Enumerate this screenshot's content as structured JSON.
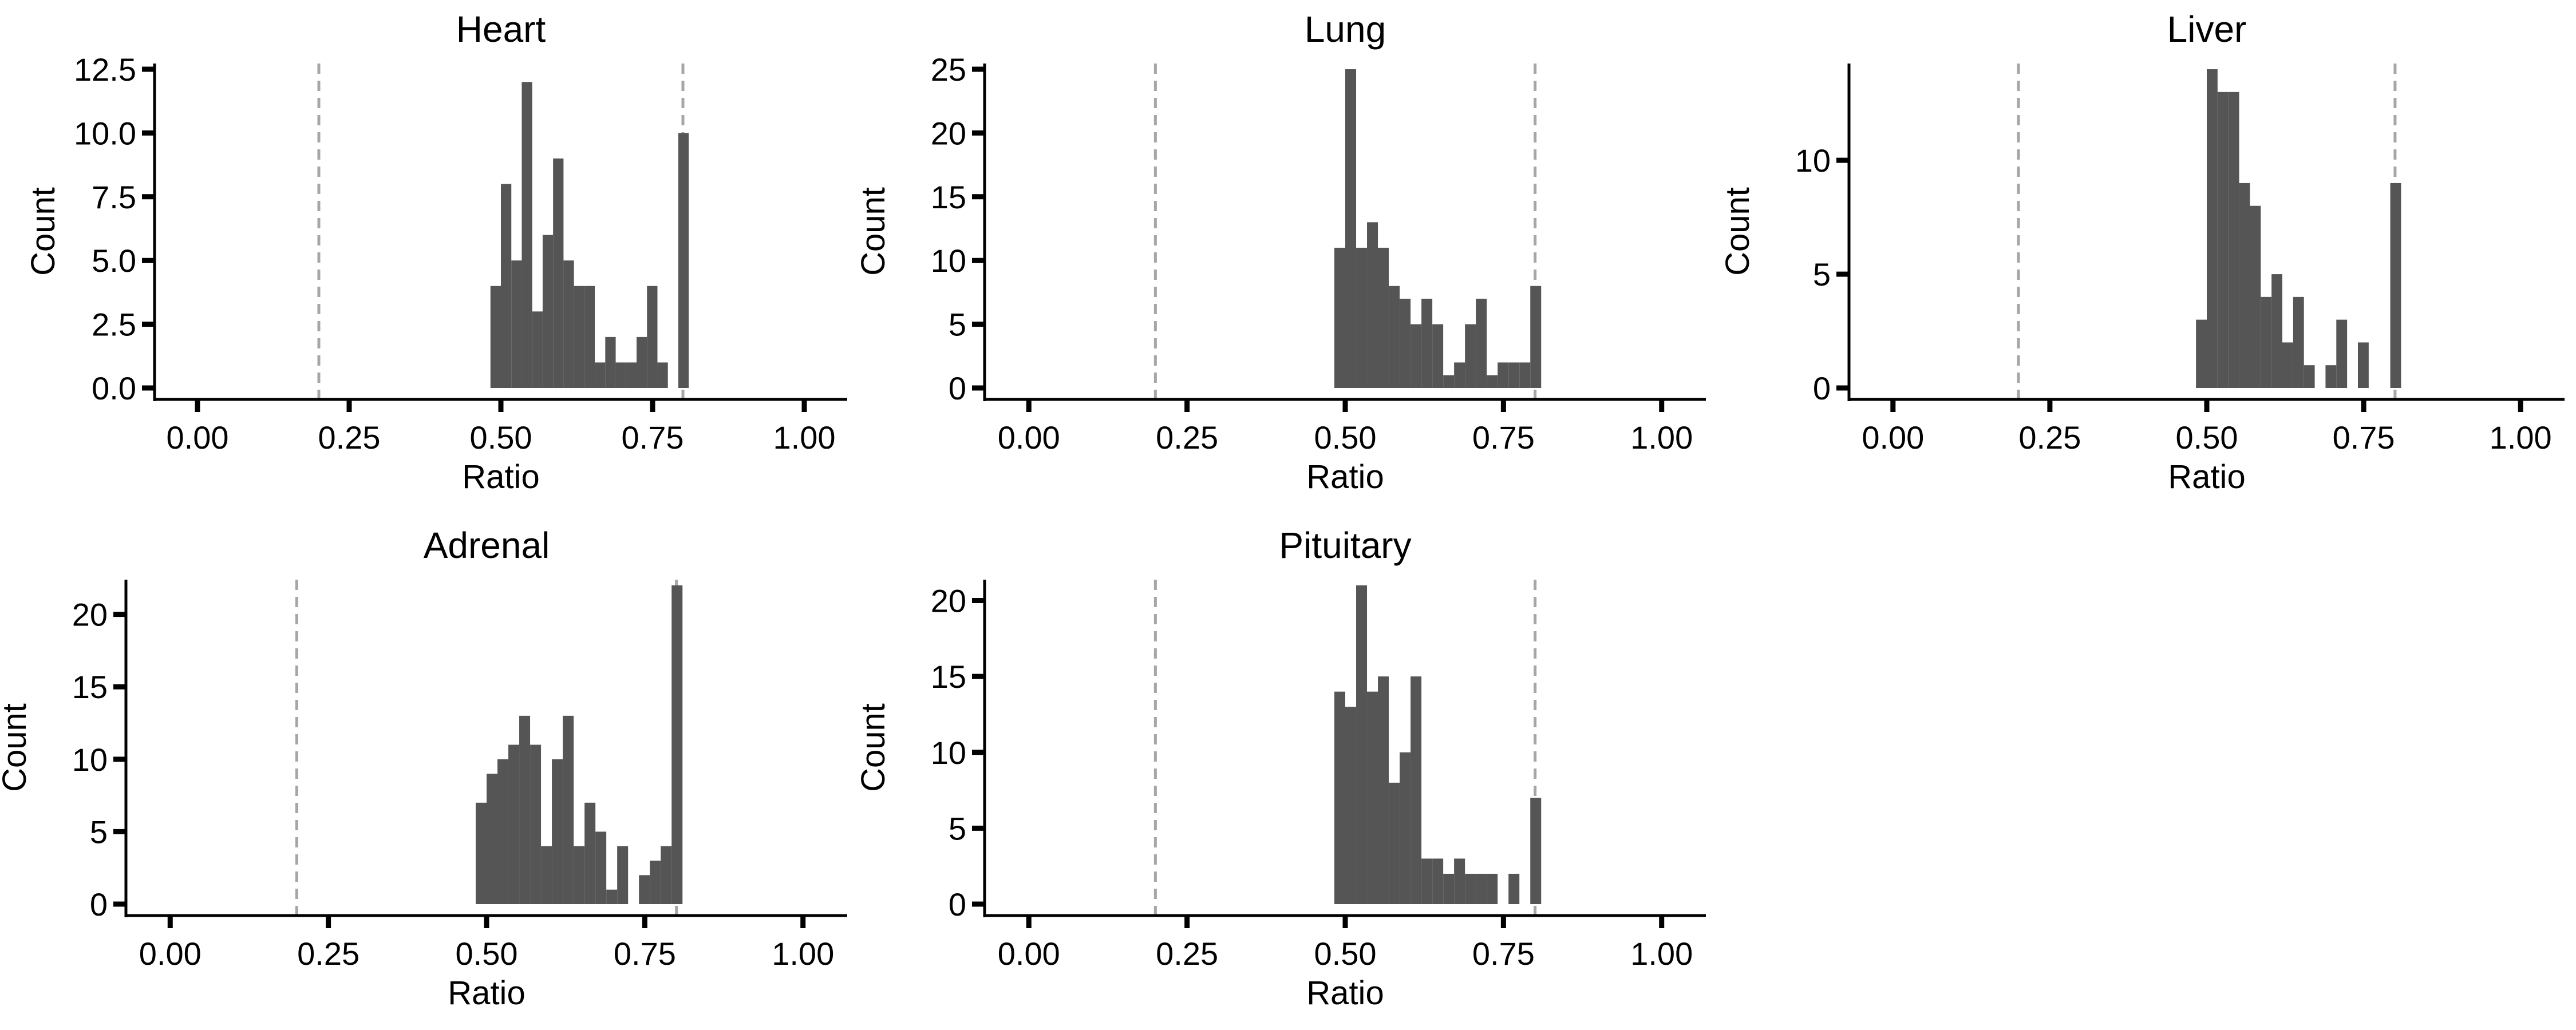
{
  "colors": {
    "bar_fill": "#555555",
    "axis": "#000000",
    "reference_line": "#a6a6a6",
    "background": "#ffffff"
  },
  "chart_data": [
    {
      "type": "bar",
      "title": "Heart",
      "xlabel": "Ratio",
      "ylabel": "Count",
      "xlim": [
        -0.05,
        1.05
      ],
      "ylim": [
        0,
        12.5
      ],
      "x_ticks": [
        0,
        0.25,
        0.5,
        0.75,
        1
      ],
      "x_tick_labels": [
        "0.00",
        "0.25",
        "0.50",
        "0.75",
        "1.00"
      ],
      "y_ticks": [
        0,
        2.5,
        5,
        7.5,
        10,
        12.5
      ],
      "y_tick_labels": [
        "0.0",
        "2.5",
        "5.0",
        "7.5",
        "10.0",
        "12.5"
      ],
      "bin_width": 0.0172,
      "bins": [
        {
          "x": 0.4914,
          "count": 4
        },
        {
          "x": 0.5086,
          "count": 8
        },
        {
          "x": 0.5258,
          "count": 5
        },
        {
          "x": 0.543,
          "count": 12
        },
        {
          "x": 0.5602,
          "count": 3
        },
        {
          "x": 0.5774,
          "count": 6
        },
        {
          "x": 0.5946,
          "count": 9
        },
        {
          "x": 0.6118,
          "count": 5
        },
        {
          "x": 0.629,
          "count": 4
        },
        {
          "x": 0.6462,
          "count": 4
        },
        {
          "x": 0.6634,
          "count": 1
        },
        {
          "x": 0.6806,
          "count": 2
        },
        {
          "x": 0.6978,
          "count": 1
        },
        {
          "x": 0.715,
          "count": 1
        },
        {
          "x": 0.7322,
          "count": 2
        },
        {
          "x": 0.7494,
          "count": 4
        },
        {
          "x": 0.7666,
          "count": 1
        },
        {
          "x": 0.801,
          "count": 10
        }
      ],
      "reference_lines": [
        0.2,
        0.8
      ]
    },
    {
      "type": "bar",
      "title": "Lung",
      "xlabel": "Ratio",
      "ylabel": "Count",
      "xlim": [
        -0.05,
        1.05
      ],
      "ylim": [
        0,
        25
      ],
      "x_ticks": [
        0,
        0.25,
        0.5,
        0.75,
        1
      ],
      "x_tick_labels": [
        "0.00",
        "0.25",
        "0.50",
        "0.75",
        "1.00"
      ],
      "y_ticks": [
        0,
        5,
        10,
        15,
        20,
        25
      ],
      "y_tick_labels": [
        "0",
        "5",
        "10",
        "15",
        "20",
        "25"
      ],
      "bin_width": 0.0172,
      "bins": [
        {
          "x": 0.4914,
          "count": 11
        },
        {
          "x": 0.5086,
          "count": 25
        },
        {
          "x": 0.5258,
          "count": 11
        },
        {
          "x": 0.543,
          "count": 13
        },
        {
          "x": 0.5602,
          "count": 11
        },
        {
          "x": 0.5774,
          "count": 8
        },
        {
          "x": 0.5946,
          "count": 7
        },
        {
          "x": 0.6118,
          "count": 5
        },
        {
          "x": 0.629,
          "count": 7
        },
        {
          "x": 0.6462,
          "count": 5
        },
        {
          "x": 0.6634,
          "count": 1
        },
        {
          "x": 0.6806,
          "count": 2
        },
        {
          "x": 0.6978,
          "count": 5
        },
        {
          "x": 0.715,
          "count": 7
        },
        {
          "x": 0.7322,
          "count": 1
        },
        {
          "x": 0.7494,
          "count": 2
        },
        {
          "x": 0.7666,
          "count": 2
        },
        {
          "x": 0.7838,
          "count": 2
        },
        {
          "x": 0.801,
          "count": 8
        }
      ],
      "reference_lines": [
        0.2,
        0.8
      ]
    },
    {
      "type": "bar",
      "title": "Liver",
      "xlabel": "Ratio",
      "ylabel": "Count",
      "xlim": [
        -0.05,
        1.05
      ],
      "ylim": [
        0,
        14
      ],
      "x_ticks": [
        0,
        0.25,
        0.5,
        0.75,
        1
      ],
      "x_tick_labels": [
        "0.00",
        "0.25",
        "0.50",
        "0.75",
        "1.00"
      ],
      "y_ticks": [
        0,
        5,
        10
      ],
      "y_tick_labels": [
        "0",
        "5",
        "10"
      ],
      "bin_width": 0.0172,
      "bins": [
        {
          "x": 0.4914,
          "count": 3
        },
        {
          "x": 0.5086,
          "count": 14
        },
        {
          "x": 0.5258,
          "count": 13
        },
        {
          "x": 0.543,
          "count": 13
        },
        {
          "x": 0.5602,
          "count": 9
        },
        {
          "x": 0.5774,
          "count": 8
        },
        {
          "x": 0.5946,
          "count": 4
        },
        {
          "x": 0.6118,
          "count": 5
        },
        {
          "x": 0.629,
          "count": 2
        },
        {
          "x": 0.6462,
          "count": 4
        },
        {
          "x": 0.6634,
          "count": 1
        },
        {
          "x": 0.6978,
          "count": 1
        },
        {
          "x": 0.715,
          "count": 3
        },
        {
          "x": 0.7494,
          "count": 2
        },
        {
          "x": 0.801,
          "count": 9
        }
      ],
      "reference_lines": [
        0.2,
        0.8
      ]
    },
    {
      "type": "bar",
      "title": "Adrenal",
      "xlabel": "Ratio",
      "ylabel": "Count",
      "xlim": [
        -0.05,
        1.05
      ],
      "ylim": [
        0,
        22
      ],
      "x_ticks": [
        0,
        0.25,
        0.5,
        0.75,
        1
      ],
      "x_tick_labels": [
        "0.00",
        "0.25",
        "0.50",
        "0.75",
        "1.00"
      ],
      "y_ticks": [
        0,
        5,
        10,
        15,
        20
      ],
      "y_tick_labels": [
        "0",
        "5",
        "10",
        "15",
        "20"
      ],
      "bin_width": 0.0172,
      "bins": [
        {
          "x": 0.4914,
          "count": 7
        },
        {
          "x": 0.5086,
          "count": 9
        },
        {
          "x": 0.5258,
          "count": 10
        },
        {
          "x": 0.543,
          "count": 11
        },
        {
          "x": 0.5602,
          "count": 13
        },
        {
          "x": 0.5774,
          "count": 11
        },
        {
          "x": 0.5946,
          "count": 4
        },
        {
          "x": 0.6118,
          "count": 10
        },
        {
          "x": 0.629,
          "count": 13
        },
        {
          "x": 0.6462,
          "count": 4
        },
        {
          "x": 0.6634,
          "count": 7
        },
        {
          "x": 0.6806,
          "count": 5
        },
        {
          "x": 0.6978,
          "count": 1
        },
        {
          "x": 0.715,
          "count": 4
        },
        {
          "x": 0.7494,
          "count": 2
        },
        {
          "x": 0.7666,
          "count": 3
        },
        {
          "x": 0.7838,
          "count": 4
        },
        {
          "x": 0.801,
          "count": 22
        }
      ],
      "reference_lines": [
        0.2,
        0.8
      ]
    },
    {
      "type": "bar",
      "title": "Pituitary",
      "xlabel": "Ratio",
      "ylabel": "Count",
      "xlim": [
        -0.05,
        1.05
      ],
      "ylim": [
        0,
        21
      ],
      "x_ticks": [
        0,
        0.25,
        0.5,
        0.75,
        1
      ],
      "x_tick_labels": [
        "0.00",
        "0.25",
        "0.50",
        "0.75",
        "1.00"
      ],
      "y_ticks": [
        0,
        5,
        10,
        15,
        20
      ],
      "y_tick_labels": [
        "0",
        "5",
        "10",
        "15",
        "20"
      ],
      "bin_width": 0.0172,
      "bins": [
        {
          "x": 0.4914,
          "count": 14
        },
        {
          "x": 0.5086,
          "count": 13
        },
        {
          "x": 0.5258,
          "count": 21
        },
        {
          "x": 0.543,
          "count": 14
        },
        {
          "x": 0.5602,
          "count": 15
        },
        {
          "x": 0.5774,
          "count": 8
        },
        {
          "x": 0.5946,
          "count": 10
        },
        {
          "x": 0.6118,
          "count": 15
        },
        {
          "x": 0.629,
          "count": 3
        },
        {
          "x": 0.6462,
          "count": 3
        },
        {
          "x": 0.6634,
          "count": 2
        },
        {
          "x": 0.6806,
          "count": 3
        },
        {
          "x": 0.6978,
          "count": 2
        },
        {
          "x": 0.715,
          "count": 2
        },
        {
          "x": 0.7322,
          "count": 2
        },
        {
          "x": 0.7666,
          "count": 2
        },
        {
          "x": 0.801,
          "count": 7
        }
      ],
      "reference_lines": [
        0.2,
        0.8
      ]
    }
  ]
}
